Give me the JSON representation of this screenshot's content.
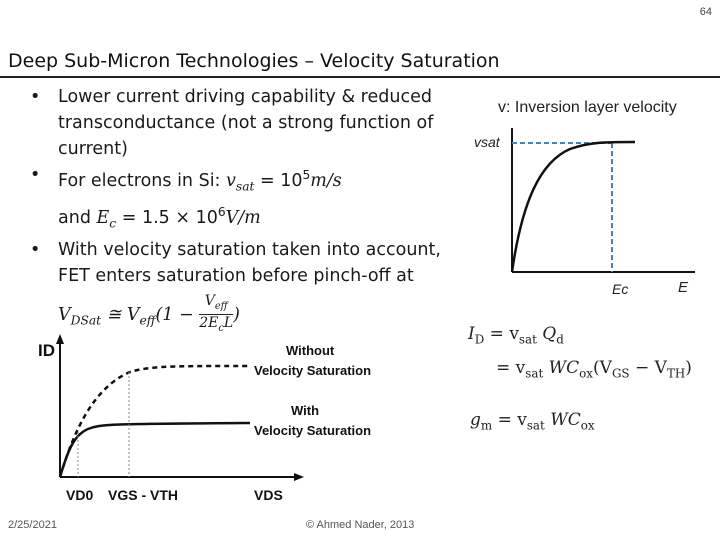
{
  "page_number": "64",
  "title": "Deep Sub-Micron Technologies – Velocity Saturation",
  "bullets": {
    "b1": "Lower current driving capability & reduced transconductance (not a strong function of current)",
    "b2_prefix": "For electrons in Si: ",
    "b2_vsat": "v",
    "b2_vsat_sub": "sat",
    "b2_vsat_val": " = 10",
    "b2_vsat_exp": "5",
    "b2_vsat_unit": "m/s",
    "b2_and": "and ",
    "b2_ec": "E",
    "b2_ec_sub": "c",
    "b2_ec_val": " = 1.5 × 10",
    "b2_ec_exp": "6",
    "b2_ec_unit": "V/m",
    "b3": "With velocity saturation taken into account, FET enters saturation before pinch-off at",
    "b3_formula_lhs": "V",
    "b3_formula_lhs_sub": "DSat",
    "b3_formula_mid": " ≅ V",
    "b3_formula_mid_sub": "eff",
    "b3_formula_tail": "(1 − ",
    "b3_frac_num": "V",
    "b3_frac_num_sub": "eff",
    "b3_frac_den": "2E",
    "b3_frac_den_sub": "c",
    "b3_frac_den_tail": "L",
    "b3_close": ")"
  },
  "velocity_graph": {
    "label_top": "v: Inversion layer velocity",
    "label_vsat": "vsat",
    "label_ec": "Ec",
    "label_e": "E"
  },
  "current_graph": {
    "y_label": "ID",
    "label_without_1": "Without",
    "label_without_2": "Velocity Saturation",
    "label_with_1": "With",
    "label_with_2": "Velocity Saturation",
    "x_vd0": "VD0",
    "x_vgs_vth": "VGS - VTH",
    "x_vds": "VDS"
  },
  "equations": {
    "id_lhs": "I",
    "id_lhs_sub": "D",
    "id_rhs": " = v",
    "id_rhs_sub": "sat",
    "id_rhs_tail": " Q",
    "id_rhs_tail_sub": "d",
    "id2": "= v",
    "id2_sub": "sat",
    "id2_mid": " WC",
    "id2_mid_sub": "ox",
    "id2_tail": "(V",
    "id2_tail_sub": "GS",
    "id2_tail2": " − V",
    "id2_tail2_sub": "TH",
    "id2_close": ")",
    "gm_lhs": "g",
    "gm_lhs_sub": "m",
    "gm_rhs": " = v",
    "gm_rhs_sub": "sat",
    "gm_tail": " WC",
    "gm_tail_sub": "ox"
  },
  "footer": {
    "date": "2/25/2021",
    "copyright": "© Ahmed Nader, 2013"
  },
  "colors": {
    "dashed_guide": "#4a7fb8",
    "text": "#1a1a1a"
  }
}
